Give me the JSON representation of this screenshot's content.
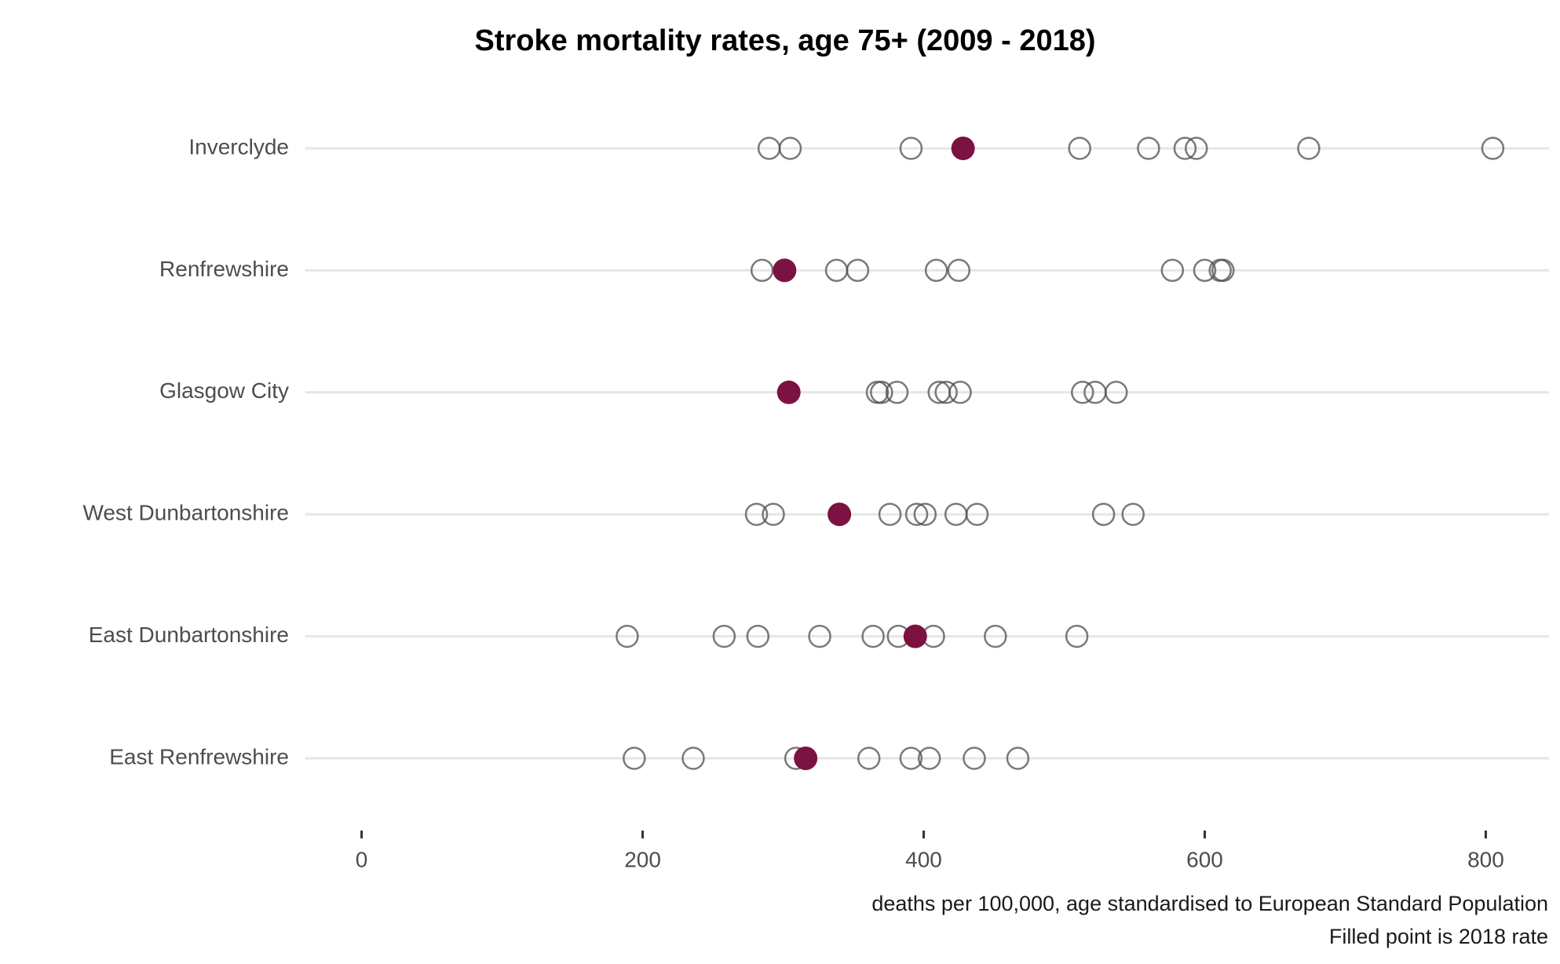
{
  "chart_data": {
    "type": "dotplot",
    "title": "Stroke mortality rates, age 75+ (2009 - 2018)",
    "annotations": [
      "deaths per 100,000, age standardised to European Standard Population",
      "Filled point is 2018 rate"
    ],
    "categories": [
      "Inverclyde",
      "Renfrewshire",
      "Glasgow City",
      "West Dunbartonshire",
      "East Dunbartonshire",
      "East Renfrewshire"
    ],
    "values": [
      [
        290,
        305,
        391,
        511,
        560,
        586,
        594,
        674,
        805
      ],
      [
        285,
        338,
        353,
        409,
        425,
        577,
        600,
        611,
        613
      ],
      [
        367,
        370,
        381,
        411,
        416,
        426,
        513,
        522,
        537
      ],
      [
        281,
        293,
        376,
        395,
        401,
        423,
        438,
        528,
        549
      ],
      [
        189,
        258,
        282,
        326,
        364,
        382,
        407,
        451,
        509
      ],
      [
        194,
        236,
        309,
        361,
        391,
        404,
        436,
        467
      ]
    ],
    "filled_values": [
      428,
      301,
      304,
      340,
      394,
      316
    ],
    "color": "#4d4d4d",
    "filled_color": "#7b1242",
    "xlim": [
      -40,
      845
    ],
    "xticks": [
      0,
      200,
      400,
      600,
      800
    ],
    "grid": true
  }
}
